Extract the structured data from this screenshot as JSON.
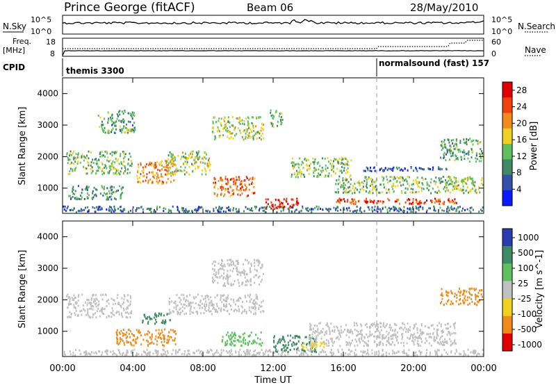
{
  "header": {
    "station": "Prince George (fitACF)",
    "beam": "Beam 06",
    "date": "28/May/2010"
  },
  "strip_labels": {
    "nsky": "N.Sky",
    "nsky_top": "10^5",
    "nsky_bottom": "10^0",
    "nsearch": "N.Search",
    "nsearch_top": "10^5",
    "nsearch_bottom": "10^0",
    "freq_line1": "Freq.",
    "freq_line2": "[MHz]",
    "freq_top": "18",
    "freq_bottom": "8",
    "nave": "Nave",
    "nave_top": "60",
    "nave_bottom": "0",
    "cpid": "CPID",
    "cpid_1": "themis 3300",
    "cpid_2": "normalsound (fast) 157"
  },
  "colors": {
    "power": [
      "#0a1aff",
      "#3450a8",
      "#3f8a64",
      "#60c060",
      "#f0d020",
      "#f08a1a",
      "#f04010",
      "#e00000"
    ],
    "velocity_pos": [
      "#2a3cb0",
      "#3f8a64",
      "#60c060"
    ],
    "velocity_gs": "#c0c0c0",
    "velocity_neg": [
      "#f0d020",
      "#f08a1a",
      "#e00000"
    ]
  },
  "chart_data": [
    {
      "type": "heatmap",
      "title": "",
      "quantity": "Power",
      "xlabel": "Time UT",
      "ylabel": "Slant Range [km]",
      "x_ticks": [
        "00:00",
        "04:00",
        "08:00",
        "12:00",
        "16:00",
        "20:00",
        "00:00"
      ],
      "y_ticks": [
        1000,
        2000,
        3000,
        4000
      ],
      "xlim_hours": [
        0,
        24
      ],
      "ylim_km": [
        200,
        4500
      ],
      "colorbar": {
        "label": "Power [dB]",
        "ticks": [
          4,
          8,
          12,
          16,
          20,
          24,
          28
        ],
        "range": [
          0,
          30
        ]
      },
      "scatter_bands": [
        {
          "start_h": 0.0,
          "end_h": 24.0,
          "km_low": 200,
          "km_high": 450,
          "level": 8
        },
        {
          "start_h": 0.2,
          "end_h": 4.0,
          "km_low": 1400,
          "km_high": 2200,
          "level": 14
        },
        {
          "start_h": 0.3,
          "end_h": 3.5,
          "km_low": 600,
          "km_high": 1100,
          "level": 10
        },
        {
          "start_h": 2.0,
          "end_h": 4.2,
          "km_low": 2700,
          "km_high": 3500,
          "level": 12
        },
        {
          "start_h": 4.2,
          "end_h": 6.5,
          "km_low": 1100,
          "km_high": 1900,
          "level": 22
        },
        {
          "start_h": 5.8,
          "end_h": 8.5,
          "km_low": 1400,
          "km_high": 2200,
          "level": 16
        },
        {
          "start_h": 8.5,
          "end_h": 11.0,
          "km_low": 700,
          "km_high": 1400,
          "level": 24
        },
        {
          "start_h": 8.5,
          "end_h": 11.5,
          "km_low": 2500,
          "km_high": 3300,
          "level": 16
        },
        {
          "start_h": 11.8,
          "end_h": 12.6,
          "km_low": 2900,
          "km_high": 3500,
          "level": 14
        },
        {
          "start_h": 11.5,
          "end_h": 13.5,
          "km_low": 300,
          "km_high": 700,
          "level": 28
        },
        {
          "start_h": 13.0,
          "end_h": 16.5,
          "km_low": 1300,
          "km_high": 2000,
          "level": 14
        },
        {
          "start_h": 15.5,
          "end_h": 22.5,
          "km_low": 450,
          "km_high": 700,
          "level": 26
        },
        {
          "start_h": 15.5,
          "end_h": 22.5,
          "km_low": 800,
          "km_high": 1400,
          "level": 14
        },
        {
          "start_h": 17.0,
          "end_h": 22.0,
          "km_low": 1500,
          "km_high": 1700,
          "level": 6
        },
        {
          "start_h": 21.5,
          "end_h": 24.0,
          "km_low": 1800,
          "km_high": 2600,
          "level": 12
        },
        {
          "start_h": 22.0,
          "end_h": 24.0,
          "km_low": 800,
          "km_high": 1400,
          "level": 16
        }
      ]
    },
    {
      "type": "heatmap",
      "title": "",
      "quantity": "Velocity",
      "xlabel": "Time UT",
      "ylabel": "Slant Range [km]",
      "x_ticks": [
        "00:00",
        "04:00",
        "08:00",
        "12:00",
        "16:00",
        "20:00",
        "00:00"
      ],
      "y_ticks": [
        1000,
        2000,
        3000,
        4000
      ],
      "xlim_hours": [
        0,
        24
      ],
      "ylim_km": [
        200,
        4500
      ],
      "colorbar": {
        "label": "Velocity [m s^-1]",
        "ticks": [
          1000,
          500,
          100,
          25,
          -25,
          -100,
          -500,
          -1000
        ]
      },
      "scatter_bands": [
        {
          "start_h": 0.0,
          "end_h": 24.0,
          "km_low": 200,
          "km_high": 450,
          "level": 0
        },
        {
          "start_h": 0.2,
          "end_h": 4.0,
          "km_low": 1400,
          "km_high": 2200,
          "level": 0
        },
        {
          "start_h": 3.0,
          "end_h": 6.5,
          "km_low": 500,
          "km_high": 1100,
          "level": -300
        },
        {
          "start_h": 4.5,
          "end_h": 6.2,
          "km_low": 1200,
          "km_high": 1600,
          "level": 150
        },
        {
          "start_h": 6.0,
          "end_h": 11.5,
          "km_low": 1500,
          "km_high": 2200,
          "level": 0
        },
        {
          "start_h": 8.5,
          "end_h": 11.5,
          "km_low": 2400,
          "km_high": 3300,
          "level": 0
        },
        {
          "start_h": 9.0,
          "end_h": 11.5,
          "km_low": 500,
          "km_high": 1000,
          "level": 80
        },
        {
          "start_h": 12.0,
          "end_h": 14.5,
          "km_low": 300,
          "km_high": 900,
          "level": 120
        },
        {
          "start_h": 13.5,
          "end_h": 15.0,
          "km_low": 400,
          "km_high": 700,
          "level": -60
        },
        {
          "start_h": 14.0,
          "end_h": 22.5,
          "km_low": 500,
          "km_high": 1300,
          "level": 0
        },
        {
          "start_h": 21.5,
          "end_h": 24.0,
          "km_low": 1800,
          "km_high": 2400,
          "level": -400
        }
      ]
    }
  ]
}
